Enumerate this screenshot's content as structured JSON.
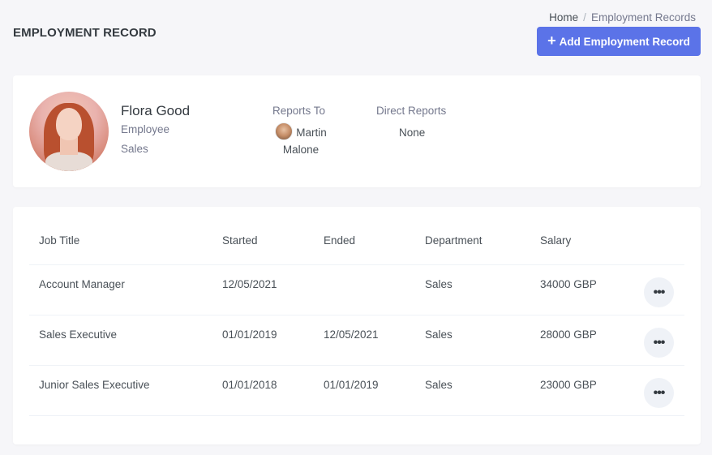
{
  "header": {
    "title": "EMPLOYMENT RECORD",
    "breadcrumb": [
      "Home",
      "Employment Records"
    ],
    "add_button_label": "Add Employment Record",
    "accent_color": "#5b73e8"
  },
  "profile": {
    "name": "Flora Good",
    "role": "Employee",
    "department": "Sales",
    "reports_to_label": "Reports To",
    "reports_to_name": "Martin Malone",
    "direct_reports_label": "Direct Reports",
    "direct_reports_value": "None"
  },
  "table": {
    "columns": [
      "Job Title",
      "Started",
      "Ended",
      "Department",
      "Salary"
    ],
    "rows": [
      [
        "Account Manager",
        "12/05/2021",
        "",
        "Sales",
        "34000 GBP"
      ],
      [
        "Sales Executive",
        "01/01/2019",
        "12/05/2021",
        "Sales",
        "28000 GBP"
      ],
      [
        "Junior Sales Executive",
        "01/01/2018",
        "01/01/2019",
        "Sales",
        "23000 GBP"
      ]
    ],
    "row_action_icon": "more-horizontal-icon"
  }
}
